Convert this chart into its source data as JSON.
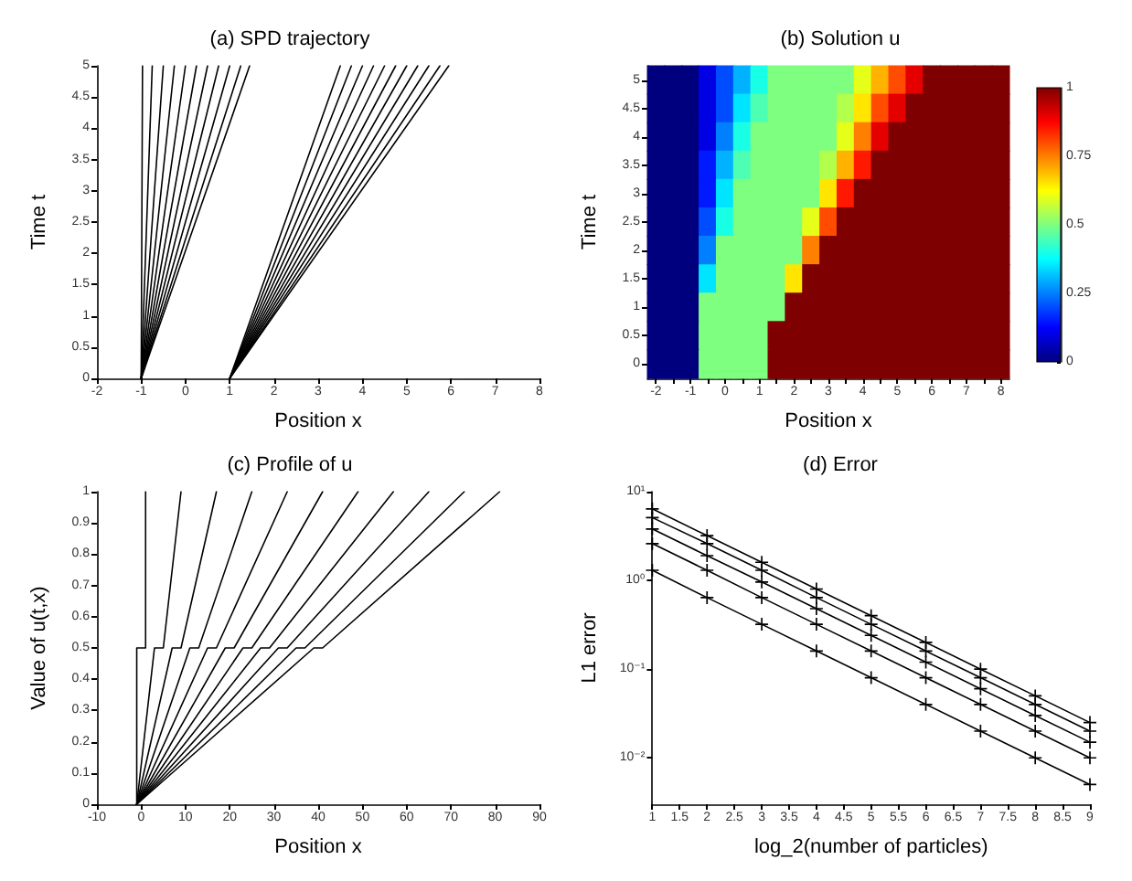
{
  "chart_data": [
    {
      "type": "line",
      "title": "(a) SPD trajectory",
      "xlabel": "Position x",
      "ylabel": "Time t",
      "color": "#000000",
      "xlim": [
        -2,
        8
      ],
      "xticks": [
        -2,
        -1,
        0,
        1,
        2,
        3,
        4,
        5,
        6,
        7,
        8
      ],
      "ylim": [
        0,
        5
      ],
      "yticks": [
        0,
        0.5,
        1,
        1.5,
        2,
        2.5,
        3,
        3.5,
        4,
        4.5,
        5
      ],
      "series": [
        {
          "x": [
            -1,
            -0.97
          ],
          "values": [
            0,
            5
          ]
        },
        {
          "x": [
            -1,
            -0.75
          ],
          "values": [
            0,
            5
          ]
        },
        {
          "x": [
            -1,
            -0.5
          ],
          "values": [
            0,
            5
          ]
        },
        {
          "x": [
            -1,
            -0.25
          ],
          "values": [
            0,
            5
          ]
        },
        {
          "x": [
            -1,
            0
          ],
          "values": [
            0,
            5
          ]
        },
        {
          "x": [
            -1,
            0.25
          ],
          "values": [
            0,
            5
          ]
        },
        {
          "x": [
            -1,
            0.5
          ],
          "values": [
            0,
            5
          ]
        },
        {
          "x": [
            -1,
            0.75
          ],
          "values": [
            0,
            5
          ]
        },
        {
          "x": [
            -1,
            1
          ],
          "values": [
            0,
            5
          ]
        },
        {
          "x": [
            -1,
            1.25
          ],
          "values": [
            0,
            5
          ]
        },
        {
          "x": [
            -1,
            1.45
          ],
          "values": [
            0,
            5
          ]
        },
        {
          "x": [
            1,
            3.5
          ],
          "values": [
            0,
            5
          ]
        },
        {
          "x": [
            1,
            3.75
          ],
          "values": [
            0,
            5
          ]
        },
        {
          "x": [
            1,
            4
          ],
          "values": [
            0,
            5
          ]
        },
        {
          "x": [
            1,
            4.25
          ],
          "values": [
            0,
            5
          ]
        },
        {
          "x": [
            1,
            4.5
          ],
          "values": [
            0,
            5
          ]
        },
        {
          "x": [
            1,
            4.75
          ],
          "values": [
            0,
            5
          ]
        },
        {
          "x": [
            1,
            5
          ],
          "values": [
            0,
            5
          ]
        },
        {
          "x": [
            1,
            5.25
          ],
          "values": [
            0,
            5
          ]
        },
        {
          "x": [
            1,
            5.5
          ],
          "values": [
            0,
            5
          ]
        },
        {
          "x": [
            1,
            5.75
          ],
          "values": [
            0,
            5
          ]
        },
        {
          "x": [
            1,
            5.95
          ],
          "values": [
            0,
            5
          ]
        }
      ]
    },
    {
      "type": "heatmap",
      "title": "(b) Solution u",
      "xlabel": "Position x",
      "ylabel": "Time t",
      "categories": [
        "-2",
        null,
        "-1",
        null,
        "0",
        null,
        "1",
        null,
        "2",
        null,
        "3",
        null,
        "4",
        null,
        "5",
        null,
        "6",
        null,
        "7",
        null,
        "8"
      ],
      "y_categories": [
        "5",
        "4.5",
        "4",
        "3.5",
        "3",
        "2.5",
        "2",
        "1.5",
        "1",
        "0.5",
        "0"
      ],
      "clim": [
        0,
        1
      ],
      "cticks": [
        0,
        0.25,
        0.5,
        0.75,
        1
      ],
      "cells": [
        [
          0,
          0,
          0,
          0.1,
          0.2,
          0.3,
          0.4,
          0.5,
          0.5,
          0.5,
          0.5,
          0.5,
          0.6,
          0.7,
          0.8,
          0.9,
          1,
          1,
          1,
          1,
          1
        ],
        [
          0,
          0,
          0,
          0.1,
          0.2,
          0.35,
          0.45,
          0.5,
          0.5,
          0.5,
          0.5,
          0.55,
          0.65,
          0.8,
          0.9,
          1,
          1,
          1,
          1,
          1,
          1
        ],
        [
          0,
          0,
          0,
          0.1,
          0.25,
          0.4,
          0.5,
          0.5,
          0.5,
          0.5,
          0.5,
          0.6,
          0.75,
          0.9,
          1,
          1,
          1,
          1,
          1,
          1,
          1
        ],
        [
          0,
          0,
          0,
          0.15,
          0.3,
          0.45,
          0.5,
          0.5,
          0.5,
          0.5,
          0.55,
          0.7,
          0.85,
          1,
          1,
          1,
          1,
          1,
          1,
          1,
          1
        ],
        [
          0,
          0,
          0,
          0.15,
          0.35,
          0.5,
          0.5,
          0.5,
          0.5,
          0.5,
          0.65,
          0.85,
          1,
          1,
          1,
          1,
          1,
          1,
          1,
          1,
          1
        ],
        [
          0,
          0,
          0,
          0.2,
          0.4,
          0.5,
          0.5,
          0.5,
          0.5,
          0.6,
          0.8,
          1,
          1,
          1,
          1,
          1,
          1,
          1,
          1,
          1,
          1
        ],
        [
          0,
          0,
          0,
          0.25,
          0.5,
          0.5,
          0.5,
          0.5,
          0.5,
          0.75,
          1,
          1,
          1,
          1,
          1,
          1,
          1,
          1,
          1,
          1,
          1
        ],
        [
          0,
          0,
          0,
          0.35,
          0.5,
          0.5,
          0.5,
          0.5,
          0.65,
          1,
          1,
          1,
          1,
          1,
          1,
          1,
          1,
          1,
          1,
          1,
          1
        ],
        [
          0,
          0,
          0,
          0.5,
          0.5,
          0.5,
          0.5,
          0.5,
          1,
          1,
          1,
          1,
          1,
          1,
          1,
          1,
          1,
          1,
          1,
          1,
          1
        ],
        [
          0,
          0,
          0,
          0.5,
          0.5,
          0.5,
          0.5,
          1,
          1,
          1,
          1,
          1,
          1,
          1,
          1,
          1,
          1,
          1,
          1,
          1,
          1
        ],
        [
          0,
          0,
          0,
          0.5,
          0.5,
          0.5,
          0.5,
          1,
          1,
          1,
          1,
          1,
          1,
          1,
          1,
          1,
          1,
          1,
          1,
          1,
          1
        ]
      ]
    },
    {
      "type": "line",
      "title": "(c) Profile of u",
      "xlabel": "Position x",
      "ylabel": "Value of u(t,x)",
      "color": "#000000",
      "xlim": [
        -10,
        90
      ],
      "xticks": [
        -10,
        0,
        10,
        20,
        30,
        40,
        50,
        60,
        70,
        80,
        90
      ],
      "ylim": [
        0,
        1
      ],
      "yticks": [
        0,
        0.1,
        0.2,
        0.3,
        0.4,
        0.5,
        0.6,
        0.7,
        0.8,
        0.9,
        1
      ],
      "series": [
        {
          "x": [
            -1,
            -1,
            1,
            1
          ],
          "values": [
            0,
            0.5,
            0.5,
            1
          ]
        },
        {
          "x": [
            -1,
            3,
            5,
            9
          ],
          "values": [
            0,
            0.5,
            0.5,
            1
          ]
        },
        {
          "x": [
            -1,
            7,
            9,
            17
          ],
          "values": [
            0,
            0.5,
            0.5,
            1
          ]
        },
        {
          "x": [
            -1,
            11,
            13,
            25
          ],
          "values": [
            0,
            0.5,
            0.5,
            1
          ]
        },
        {
          "x": [
            -1,
            15,
            17,
            33
          ],
          "values": [
            0,
            0.5,
            0.5,
            1
          ]
        },
        {
          "x": [
            -1,
            19,
            21,
            41
          ],
          "values": [
            0,
            0.5,
            0.5,
            1
          ]
        },
        {
          "x": [
            -1,
            23,
            25,
            49
          ],
          "values": [
            0,
            0.5,
            0.5,
            1
          ]
        },
        {
          "x": [
            -1,
            27,
            29,
            57
          ],
          "values": [
            0,
            0.5,
            0.5,
            1
          ]
        },
        {
          "x": [
            -1,
            31,
            33,
            65
          ],
          "values": [
            0,
            0.5,
            0.5,
            1
          ]
        },
        {
          "x": [
            -1,
            35,
            37,
            73
          ],
          "values": [
            0,
            0.5,
            0.5,
            1
          ]
        },
        {
          "x": [
            -1,
            39,
            41,
            81
          ],
          "values": [
            0,
            0.5,
            0.5,
            1
          ]
        }
      ]
    },
    {
      "type": "line",
      "title": "(d) Error",
      "xlabel": "log_2(number of particles)",
      "ylabel": "L1 error",
      "color": "#000000",
      "log": "y",
      "marker": "cross",
      "x": [
        1,
        2,
        3,
        4,
        5,
        6,
        7,
        8,
        9
      ],
      "xlim": [
        1,
        9
      ],
      "xticks": [
        1,
        1.5,
        2,
        2.5,
        3,
        3.5,
        4,
        4.5,
        5,
        5.5,
        6,
        6.5,
        7,
        7.5,
        8,
        8.5,
        9
      ],
      "ylim": [
        0.003,
        10
      ],
      "yticks": [
        {
          "value": 0.01,
          "label": "10⁻²"
        },
        {
          "value": 0.1,
          "label": "10⁻¹"
        },
        {
          "value": 1,
          "label": "10⁰"
        },
        {
          "value": 10,
          "label": "10¹"
        }
      ],
      "series": [
        {
          "values": [
            6.4,
            3.2,
            1.6,
            0.8,
            0.4,
            0.2,
            0.1,
            0.05,
            0.025
          ]
        },
        {
          "values": [
            5.1,
            2.6,
            1.3,
            0.64,
            0.32,
            0.16,
            0.08,
            0.04,
            0.02
          ]
        },
        {
          "values": [
            3.8,
            1.9,
            0.96,
            0.48,
            0.24,
            0.12,
            0.06,
            0.03,
            0.015
          ]
        },
        {
          "values": [
            2.6,
            1.3,
            0.64,
            0.32,
            0.16,
            0.08,
            0.04,
            0.02,
            0.01
          ]
        },
        {
          "values": [
            1.3,
            0.64,
            0.32,
            0.16,
            0.08,
            0.04,
            0.02,
            0.01,
            0.005
          ]
        }
      ]
    }
  ]
}
